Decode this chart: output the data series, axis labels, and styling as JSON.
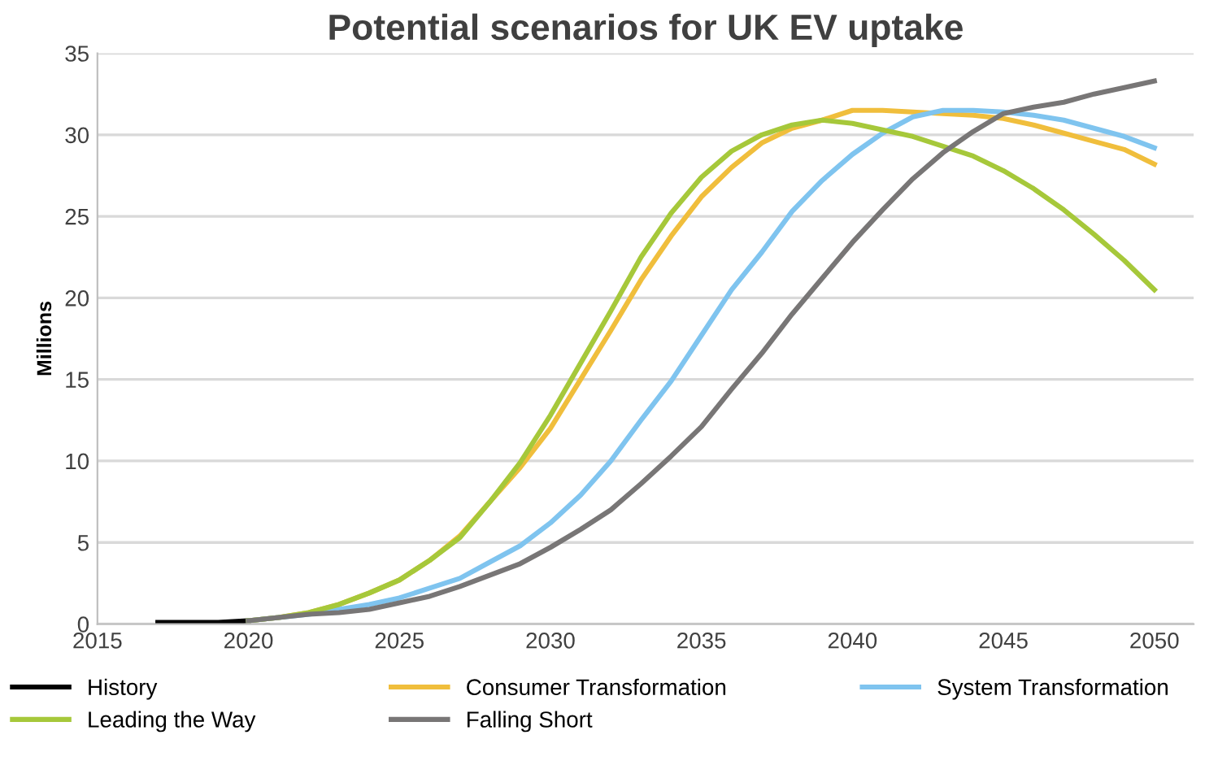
{
  "chart_data": {
    "type": "line",
    "title": "Potential scenarios for UK EV uptake",
    "ylabel": "Millions",
    "x": [
      2020,
      2021,
      2022,
      2023,
      2024,
      2025,
      2026,
      2027,
      2028,
      2029,
      2030,
      2031,
      2032,
      2033,
      2034,
      2035,
      2036,
      2037,
      2038,
      2039,
      2040,
      2041,
      2042,
      2043,
      2044,
      2045,
      2046,
      2047,
      2048,
      2049,
      2050
    ],
    "series": [
      {
        "name": "History",
        "color": "#000000",
        "x": [
          2017,
          2018,
          2019,
          2020
        ],
        "values": [
          0.1,
          0.1,
          0.1,
          0.2
        ]
      },
      {
        "name": "Consumer Transformation",
        "color": "#f0be3c",
        "values": [
          0.2,
          0.4,
          0.7,
          1.2,
          1.9,
          2.7,
          3.9,
          5.4,
          7.5,
          9.6,
          12,
          15,
          18,
          21.1,
          23.8,
          26.2,
          28,
          29.5,
          30.4,
          30.9,
          31.5,
          31.5,
          31.4,
          31.3,
          31.2,
          31,
          30.6,
          30.1,
          29.6,
          29.1,
          28.2
        ]
      },
      {
        "name": "System Transformation",
        "color": "#7fc4ef",
        "values": [
          0.2,
          0.4,
          0.6,
          0.9,
          1.2,
          1.6,
          2.2,
          2.8,
          3.8,
          4.8,
          6.2,
          7.9,
          10,
          12.5,
          14.9,
          17.7,
          20.5,
          22.8,
          25.3,
          27.2,
          28.8,
          30.1,
          31.1,
          31.5,
          31.5,
          31.4,
          31.2,
          30.9,
          30.4,
          29.9,
          29.2
        ]
      },
      {
        "name": "Leading the Way",
        "color": "#a6c83a",
        "values": [
          0.2,
          0.4,
          0.7,
          1.2,
          1.9,
          2.7,
          3.9,
          5.3,
          7.5,
          9.9,
          12.8,
          16,
          19.2,
          22.5,
          25.2,
          27.4,
          29,
          30,
          30.6,
          30.9,
          30.7,
          30.3,
          29.9,
          29.3,
          28.7,
          27.8,
          26.7,
          25.4,
          23.9,
          22.3,
          20.5
        ]
      },
      {
        "name": "Falling Short",
        "color": "#787676",
        "values": [
          0.2,
          0.4,
          0.6,
          0.7,
          0.9,
          1.3,
          1.7,
          2.3,
          3,
          3.7,
          4.7,
          5.8,
          7,
          8.6,
          10.3,
          12.1,
          14.4,
          16.6,
          19,
          21.2,
          23.4,
          25.4,
          27.3,
          28.9,
          30.2,
          31.3,
          31.7,
          32,
          32.5,
          32.9,
          33.3
        ]
      }
    ],
    "xlim": [
      2015,
      2051.3
    ],
    "xticks": [
      2015,
      2020,
      2025,
      2030,
      2035,
      2040,
      2045,
      2050
    ],
    "ylim": [
      0,
      35
    ],
    "yticks": [
      0,
      5,
      10,
      15,
      20,
      25,
      30,
      35
    ],
    "grid": "y",
    "legend": "bottom",
    "marker": "none",
    "line_style": "solid"
  }
}
